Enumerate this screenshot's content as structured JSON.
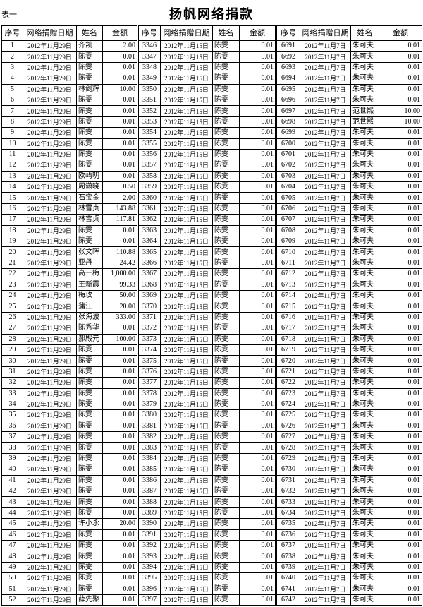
{
  "header": {
    "label": "表一",
    "title": "扬帆网络捐款"
  },
  "table": {
    "headers": [
      "序号",
      "网络捐赠日期",
      "姓名",
      "金额",
      "序号",
      "网络捐赠日期",
      "姓名",
      "金额",
      "序号",
      "网络捐赠日期",
      "姓名",
      "金额"
    ],
    "rows": [
      [
        "1",
        "2012年11月29日",
        "齐凯",
        "2.00",
        "3346",
        "2012年11月15日",
        "陈雯",
        "0.01",
        "6691",
        "2012年11月7日",
        "朱可夫",
        "0.01"
      ],
      [
        "2",
        "2012年11月29日",
        "陈雯",
        "0.01",
        "3347",
        "2012年11月15日",
        "陈雯",
        "0.01",
        "6692",
        "2012年11月7日",
        "朱可夫",
        "0.01"
      ],
      [
        "3",
        "2012年11月29日",
        "陈雯",
        "0.01",
        "3348",
        "2012年11月15日",
        "陈雯",
        "0.01",
        "6693",
        "2012年11月7日",
        "朱可夫",
        "0.01"
      ],
      [
        "4",
        "2012年11月29日",
        "陈雯",
        "0.01",
        "3349",
        "2012年11月15日",
        "陈雯",
        "0.01",
        "6694",
        "2012年11月7日",
        "朱可夫",
        "0.01"
      ],
      [
        "5",
        "2012年11月29日",
        "林剑辉",
        "10.00",
        "3350",
        "2012年11月15日",
        "陈雯",
        "0.01",
        "6695",
        "2012年11月7日",
        "朱可夫",
        "0.01"
      ],
      [
        "6",
        "2012年11月29日",
        "陈雯",
        "0.01",
        "3351",
        "2012年11月15日",
        "陈雯",
        "0.01",
        "6696",
        "2012年11月7日",
        "朱可夫",
        "0.01"
      ],
      [
        "7",
        "2012年11月29日",
        "陈雯",
        "0.01",
        "3352",
        "2012年11月15日",
        "陈雯",
        "0.01",
        "6697",
        "2012年11月7日",
        "范世熙",
        "10.00"
      ],
      [
        "8",
        "2012年11月29日",
        "陈雯",
        "0.01",
        "3353",
        "2012年11月15日",
        "陈雯",
        "0.01",
        "6698",
        "2012年11月7日",
        "范世熙",
        "10.00"
      ],
      [
        "9",
        "2012年11月29日",
        "陈雯",
        "0.01",
        "3354",
        "2012年11月15日",
        "陈雯",
        "0.01",
        "6699",
        "2012年11月7日",
        "朱可夫",
        "0.01"
      ],
      [
        "10",
        "2012年11月29日",
        "陈雯",
        "0.01",
        "3355",
        "2012年11月15日",
        "陈雯",
        "0.01",
        "6700",
        "2012年11月7日",
        "朱可夫",
        "0.01"
      ],
      [
        "11",
        "2012年11月29日",
        "陈雯",
        "0.01",
        "3356",
        "2012年11月15日",
        "陈雯",
        "0.01",
        "6701",
        "2012年11月7日",
        "朱可夫",
        "0.01"
      ],
      [
        "12",
        "2012年11月29日",
        "陈雯",
        "0.01",
        "3357",
        "2012年11月15日",
        "陈雯",
        "0.01",
        "6702",
        "2012年11月7日",
        "朱可夫",
        "0.01"
      ],
      [
        "13",
        "2012年11月29日",
        "欧屿明",
        "0.01",
        "3358",
        "2012年11月15日",
        "陈雯",
        "0.01",
        "6703",
        "2012年11月7日",
        "朱可夫",
        "0.01"
      ],
      [
        "14",
        "2012年11月29日",
        "周潇晓",
        "0.50",
        "3359",
        "2012年11月15日",
        "陈雯",
        "0.01",
        "6704",
        "2012年11月7日",
        "朱可夫",
        "0.01"
      ],
      [
        "15",
        "2012年11月29日",
        "石宝金",
        "2.00",
        "3360",
        "2012年11月15日",
        "陈雯",
        "0.01",
        "6705",
        "2012年11月7日",
        "朱可夫",
        "0.01"
      ],
      [
        "16",
        "2012年11月29日",
        "林雪贞",
        "143.88",
        "3361",
        "2012年11月15日",
        "陈雯",
        "0.01",
        "6706",
        "2012年11月7日",
        "朱可夫",
        "0.01"
      ],
      [
        "17",
        "2012年11月29日",
        "林雪贞",
        "117.81",
        "3362",
        "2012年11月15日",
        "陈雯",
        "0.01",
        "6707",
        "2012年11月7日",
        "朱可夫",
        "0.01"
      ],
      [
        "18",
        "2012年11月29日",
        "陈雯",
        "0.01",
        "3363",
        "2012年11月15日",
        "陈雯",
        "0.01",
        "6708",
        "2012年11月7日",
        "朱可夫",
        "0.01"
      ],
      [
        "19",
        "2012年11月29日",
        "陈雯",
        "0.01",
        "3364",
        "2012年11月15日",
        "陈雯",
        "0.01",
        "6709",
        "2012年11月7日",
        "朱可夫",
        "0.01"
      ],
      [
        "20",
        "2012年11月29日",
        "张文晖",
        "110.88",
        "3365",
        "2012年11月15日",
        "陈雯",
        "0.01",
        "6710",
        "2012年11月7日",
        "朱可夫",
        "0.01"
      ],
      [
        "21",
        "2012年11月29日",
        "亚丹",
        "24.42",
        "3366",
        "2012年11月15日",
        "陈雯",
        "0.01",
        "6711",
        "2012年11月7日",
        "朱可夫",
        "0.01"
      ],
      [
        "22",
        "2012年11月29日",
        "高一梅",
        "1,000.00",
        "3367",
        "2012年11月15日",
        "陈雯",
        "0.01",
        "6712",
        "2012年11月7日",
        "朱可夫",
        "0.01"
      ],
      [
        "23",
        "2012年11月29日",
        "王新霞",
        "99.33",
        "3368",
        "2012年11月15日",
        "陈雯",
        "0.01",
        "6713",
        "2012年11月7日",
        "朱可夫",
        "0.01"
      ],
      [
        "24",
        "2012年11月29日",
        "梅玫",
        "50.00",
        "3369",
        "2012年11月15日",
        "陈雯",
        "0.01",
        "6714",
        "2012年11月7日",
        "朱可夫",
        "0.01"
      ],
      [
        "25",
        "2012年11月29日",
        "蒲江",
        "20.00",
        "3370",
        "2012年11月15日",
        "陈雯",
        "0.01",
        "6715",
        "2012年11月7日",
        "朱可夫",
        "0.01"
      ],
      [
        "26",
        "2012年11月29日",
        "张海波",
        "333.00",
        "3371",
        "2012年11月15日",
        "陈雯",
        "0.01",
        "6716",
        "2012年11月7日",
        "朱可夫",
        "0.01"
      ],
      [
        "27",
        "2012年11月29日",
        "陈秀华",
        "0.01",
        "3372",
        "2012年11月15日",
        "陈雯",
        "0.01",
        "6717",
        "2012年11月7日",
        "朱可夫",
        "0.01"
      ],
      [
        "28",
        "2012年11月29日",
        "郝殿元",
        "100.00",
        "3373",
        "2012年11月15日",
        "陈雯",
        "0.01",
        "6718",
        "2012年11月7日",
        "朱可夫",
        "0.01"
      ],
      [
        "29",
        "2012年11月29日",
        "陈雯",
        "0.01",
        "3374",
        "2012年11月15日",
        "陈雯",
        "0.01",
        "6719",
        "2012年11月7日",
        "朱可夫",
        "0.01"
      ],
      [
        "30",
        "2012年11月29日",
        "陈雯",
        "0.01",
        "3375",
        "2012年11月15日",
        "陈雯",
        "0.01",
        "6720",
        "2012年11月7日",
        "朱可夫",
        "0.01"
      ],
      [
        "31",
        "2012年11月29日",
        "陈雯",
        "0.01",
        "3376",
        "2012年11月15日",
        "陈雯",
        "0.01",
        "6721",
        "2012年11月7日",
        "朱可夫",
        "0.01"
      ],
      [
        "32",
        "2012年11月29日",
        "陈雯",
        "0.01",
        "3377",
        "2012年11月15日",
        "陈雯",
        "0.01",
        "6722",
        "2012年11月7日",
        "朱可夫",
        "0.01"
      ],
      [
        "33",
        "2012年11月29日",
        "陈雯",
        "0.01",
        "3378",
        "2012年11月15日",
        "陈雯",
        "0.01",
        "6723",
        "2012年11月7日",
        "朱可夫",
        "0.01"
      ],
      [
        "34",
        "2012年11月29日",
        "陈雯",
        "0.01",
        "3379",
        "2012年11月15日",
        "陈雯",
        "0.01",
        "6724",
        "2012年11月7日",
        "朱可夫",
        "0.01"
      ],
      [
        "35",
        "2012年11月29日",
        "陈雯",
        "0.01",
        "3380",
        "2012年11月15日",
        "陈雯",
        "0.01",
        "6725",
        "2012年11月7日",
        "朱可夫",
        "0.01"
      ],
      [
        "36",
        "2012年11月29日",
        "陈雯",
        "0.01",
        "3381",
        "2012年11月15日",
        "陈雯",
        "0.01",
        "6726",
        "2012年11月7日",
        "朱可夫",
        "0.01"
      ],
      [
        "37",
        "2012年11月29日",
        "陈雯",
        "0.01",
        "3382",
        "2012年11月15日",
        "陈雯",
        "0.01",
        "6727",
        "2012年11月7日",
        "朱可夫",
        "0.01"
      ],
      [
        "38",
        "2012年11月29日",
        "陈雯",
        "0.01",
        "3383",
        "2012年11月15日",
        "陈雯",
        "0.01",
        "6728",
        "2012年11月7日",
        "朱可夫",
        "0.01"
      ],
      [
        "39",
        "2012年11月29日",
        "陈雯",
        "0.01",
        "3384",
        "2012年11月15日",
        "陈雯",
        "0.01",
        "6729",
        "2012年11月7日",
        "朱可夫",
        "0.01"
      ],
      [
        "40",
        "2012年11月29日",
        "陈雯",
        "0.01",
        "3385",
        "2012年11月15日",
        "陈雯",
        "0.01",
        "6730",
        "2012年11月7日",
        "朱可夫",
        "0.01"
      ],
      [
        "41",
        "2012年11月29日",
        "陈雯",
        "0.01",
        "3386",
        "2012年11月15日",
        "陈雯",
        "0.01",
        "6731",
        "2012年11月7日",
        "朱可夫",
        "0.01"
      ],
      [
        "42",
        "2012年11月29日",
        "陈雯",
        "0.01",
        "3387",
        "2012年11月15日",
        "陈雯",
        "0.01",
        "6732",
        "2012年11月7日",
        "朱可夫",
        "0.01"
      ],
      [
        "43",
        "2012年11月29日",
        "陈雯",
        "0.01",
        "3388",
        "2012年11月15日",
        "陈雯",
        "0.01",
        "6733",
        "2012年11月7日",
        "朱可夫",
        "0.01"
      ],
      [
        "44",
        "2012年11月29日",
        "陈雯",
        "0.01",
        "3389",
        "2012年11月15日",
        "陈雯",
        "0.01",
        "6734",
        "2012年11月7日",
        "朱可夫",
        "0.01"
      ],
      [
        "45",
        "2012年11月29日",
        "许小永",
        "20.00",
        "3390",
        "2012年11月15日",
        "陈雯",
        "0.01",
        "6735",
        "2012年11月7日",
        "朱可夫",
        "0.01"
      ],
      [
        "46",
        "2012年11月29日",
        "陈雯",
        "0.01",
        "3391",
        "2012年11月15日",
        "陈雯",
        "0.01",
        "6736",
        "2012年11月7日",
        "朱可夫",
        "0.01"
      ],
      [
        "47",
        "2012年11月29日",
        "陈雯",
        "0.01",
        "3392",
        "2012年11月15日",
        "陈雯",
        "0.01",
        "6737",
        "2012年11月7日",
        "朱可夫",
        "0.01"
      ],
      [
        "48",
        "2012年11月29日",
        "陈雯",
        "0.01",
        "3393",
        "2012年11月15日",
        "陈雯",
        "0.01",
        "6738",
        "2012年11月7日",
        "朱可夫",
        "0.01"
      ],
      [
        "49",
        "2012年11月29日",
        "陈雯",
        "0.01",
        "3394",
        "2012年11月15日",
        "陈雯",
        "0.01",
        "6739",
        "2012年11月7日",
        "朱可夫",
        "0.01"
      ],
      [
        "50",
        "2012年11月29日",
        "陈雯",
        "0.01",
        "3395",
        "2012年11月15日",
        "陈雯",
        "0.01",
        "6740",
        "2012年11月7日",
        "朱可夫",
        "0.01"
      ],
      [
        "51",
        "2012年11月29日",
        "陈雯",
        "0.01",
        "3396",
        "2012年11月15日",
        "陈雯",
        "0.01",
        "6741",
        "2012年11月7日",
        "朱可夫",
        "0.01"
      ],
      [
        "52",
        "2012年11月29日",
        "薛先聚",
        "0.01",
        "3397",
        "2012年11月15日",
        "陈雯",
        "0.01",
        "6742",
        "2012年11月7日",
        "朱可夫",
        "0.01"
      ]
    ]
  }
}
